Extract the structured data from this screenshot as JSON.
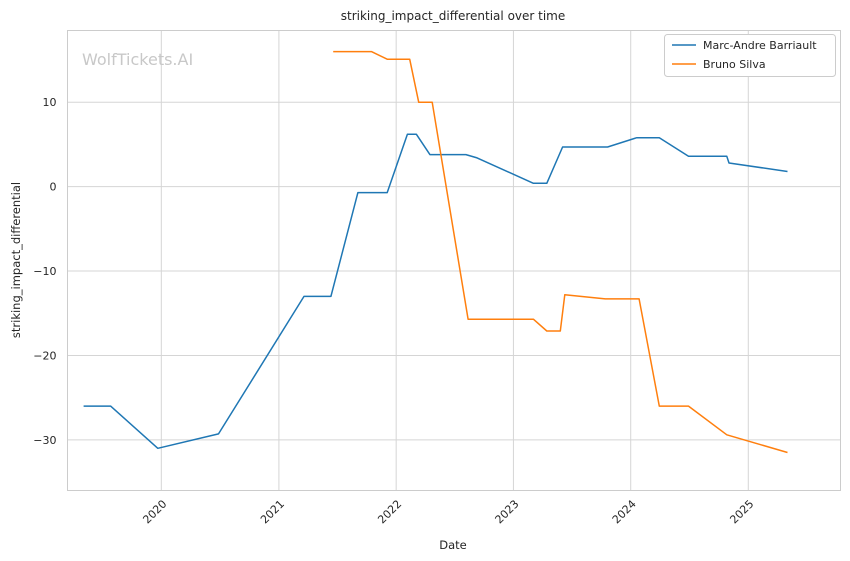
{
  "chart_data": {
    "type": "line",
    "title": "striking_impact_differential over time",
    "xlabel": "Date",
    "ylabel": "striking_impact_differential",
    "watermark": "WolfTickets.AI",
    "xlim": [
      "2019-03-15",
      "2025-10-15"
    ],
    "ylim": [
      -36,
      18.5
    ],
    "x_ticks": [
      "2020-01-01",
      "2021-01-01",
      "2022-01-01",
      "2023-01-01",
      "2024-01-01",
      "2025-01-01"
    ],
    "x_tick_labels": [
      "2020",
      "2021",
      "2022",
      "2023",
      "2024",
      "2025"
    ],
    "y_ticks": [
      -30,
      -20,
      -10,
      0,
      10
    ],
    "y_tick_labels": [
      "−30",
      "−20",
      "−10",
      "0",
      "10"
    ],
    "grid": true,
    "legend_position": "top-right",
    "series": [
      {
        "name": "Marc-Andre Barriault",
        "color": "#1f77b4",
        "points": [
          [
            "2019-05-04",
            -26.0
          ],
          [
            "2019-07-27",
            -26.0
          ],
          [
            "2019-12-21",
            -31.0
          ],
          [
            "2020-06-27",
            -29.3
          ],
          [
            "2021-03-20",
            -13.0
          ],
          [
            "2021-06-12",
            -13.0
          ],
          [
            "2021-09-04",
            -0.7
          ],
          [
            "2021-12-04",
            -0.7
          ],
          [
            "2022-02-05",
            6.2
          ],
          [
            "2022-03-05",
            6.2
          ],
          [
            "2022-04-16",
            3.8
          ],
          [
            "2022-08-06",
            3.8
          ],
          [
            "2022-09-10",
            3.4
          ],
          [
            "2023-03-04",
            0.4
          ],
          [
            "2023-04-15",
            0.4
          ],
          [
            "2023-06-03",
            4.7
          ],
          [
            "2023-10-21",
            4.7
          ],
          [
            "2024-01-20",
            5.8
          ],
          [
            "2024-03-30",
            5.8
          ],
          [
            "2024-06-29",
            3.6
          ],
          [
            "2024-10-26",
            3.6
          ],
          [
            "2024-11-02",
            2.8
          ],
          [
            "2025-05-03",
            1.8
          ]
        ]
      },
      {
        "name": "Bruno Silva",
        "color": "#ff7f0e",
        "points": [
          [
            "2021-06-19",
            16.0
          ],
          [
            "2021-10-16",
            16.0
          ],
          [
            "2021-12-04",
            15.1
          ],
          [
            "2022-02-12",
            15.1
          ],
          [
            "2022-03-12",
            10.0
          ],
          [
            "2022-04-23",
            10.0
          ],
          [
            "2022-08-13",
            -15.7
          ],
          [
            "2023-03-04",
            -15.7
          ],
          [
            "2023-04-15",
            -17.1
          ],
          [
            "2023-05-27",
            -17.1
          ],
          [
            "2023-06-10",
            -12.8
          ],
          [
            "2023-10-14",
            -13.3
          ],
          [
            "2024-01-27",
            -13.3
          ],
          [
            "2024-03-30",
            -26.0
          ],
          [
            "2024-06-29",
            -26.0
          ],
          [
            "2024-10-26",
            -29.4
          ],
          [
            "2025-05-03",
            -31.5
          ]
        ]
      }
    ]
  }
}
